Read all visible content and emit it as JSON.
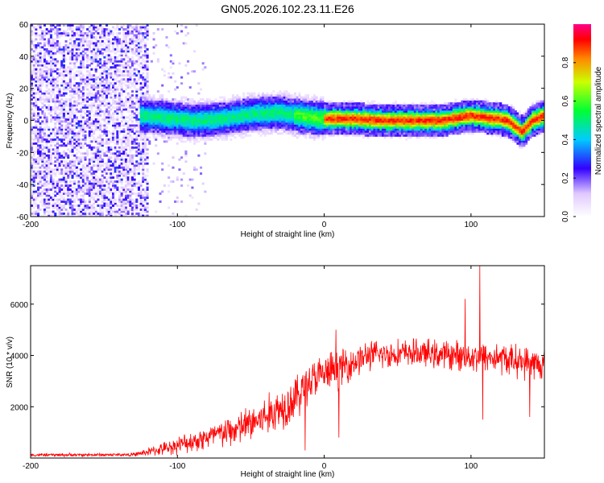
{
  "title": "GN05.2026.102.23.11.E26",
  "colors": {
    "snr_line": "#ff0000",
    "axis": "#000000"
  },
  "chart_data": [
    {
      "type": "heatmap",
      "name": "spectrogram",
      "xlabel": "Height of straight line (km)",
      "ylabel": "Frequency (Hz)",
      "xlim": [
        -200,
        150
      ],
      "ylim": [
        -60,
        60
      ],
      "xticks": [
        -200,
        -100,
        0,
        100
      ],
      "yticks": [
        60,
        40,
        20,
        0,
        -20,
        -40,
        -60
      ],
      "colorbar": {
        "label": "Normalized spectral amplitude",
        "range": [
          0.0,
          1.0
        ],
        "ticks": [
          0.0,
          0.2,
          0.4,
          0.6,
          0.8
        ]
      },
      "noise_region_km": [
        -200,
        -120
      ],
      "signal_start_km": -125,
      "ridge": [
        {
          "x": -125,
          "f": 3
        },
        {
          "x": -110,
          "f": 2
        },
        {
          "x": -90,
          "f": 0
        },
        {
          "x": -70,
          "f": 1
        },
        {
          "x": -50,
          "f": 4
        },
        {
          "x": -30,
          "f": 5
        },
        {
          "x": -10,
          "f": 2
        },
        {
          "x": 0,
          "f": 1
        },
        {
          "x": 20,
          "f": 1
        },
        {
          "x": 40,
          "f": 0
        },
        {
          "x": 60,
          "f": 0
        },
        {
          "x": 80,
          "f": 0
        },
        {
          "x": 100,
          "f": 3
        },
        {
          "x": 110,
          "f": 2
        },
        {
          "x": 125,
          "f": 0
        },
        {
          "x": 135,
          "f": -7
        },
        {
          "x": 142,
          "f": 0
        },
        {
          "x": 150,
          "f": 3
        }
      ]
    },
    {
      "type": "line",
      "name": "snr",
      "xlabel": "Height of straight line (km)",
      "ylabel": "SNR (10 * v/v)",
      "xlim": [
        -200,
        150
      ],
      "ylim": [
        0,
        7500
      ],
      "xticks": [
        -200,
        -100,
        0,
        100
      ],
      "yticks": [
        2000,
        4000,
        6000
      ],
      "envelope": [
        {
          "x": -200,
          "mean": 120,
          "spread": 80
        },
        {
          "x": -130,
          "mean": 130,
          "spread": 80
        },
        {
          "x": -110,
          "mean": 350,
          "spread": 300
        },
        {
          "x": -90,
          "mean": 650,
          "spread": 500
        },
        {
          "x": -60,
          "mean": 1100,
          "spread": 800
        },
        {
          "x": -40,
          "mean": 1600,
          "spread": 1000
        },
        {
          "x": -20,
          "mean": 2300,
          "spread": 1100
        },
        {
          "x": -10,
          "mean": 3000,
          "spread": 1000
        },
        {
          "x": 10,
          "mean": 3500,
          "spread": 900
        },
        {
          "x": 30,
          "mean": 4000,
          "spread": 700
        },
        {
          "x": 60,
          "mean": 4100,
          "spread": 650
        },
        {
          "x": 90,
          "mean": 4000,
          "spread": 700
        },
        {
          "x": 120,
          "mean": 3900,
          "spread": 750
        },
        {
          "x": 150,
          "mean": 3600,
          "spread": 800
        }
      ],
      "spikes": [
        {
          "x": -13,
          "y": 300
        },
        {
          "x": 8,
          "y": 5000
        },
        {
          "x": 10,
          "y": 800
        },
        {
          "x": 96,
          "y": 6200
        },
        {
          "x": 106,
          "y": 7500
        },
        {
          "x": 108,
          "y": 1500
        },
        {
          "x": 140,
          "y": 1600
        }
      ]
    }
  ]
}
